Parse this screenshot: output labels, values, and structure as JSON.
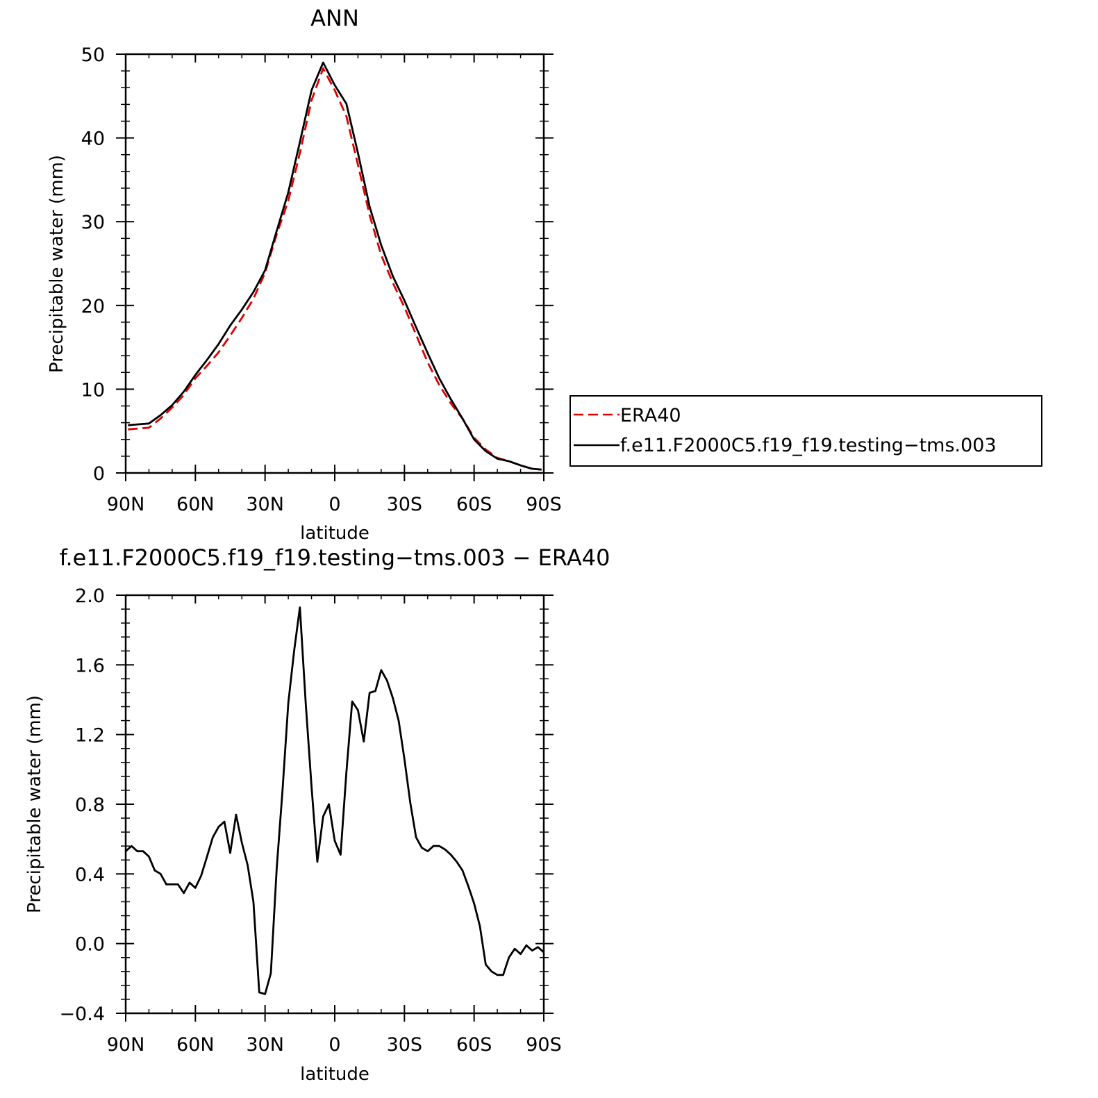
{
  "chart_data": [
    {
      "type": "line",
      "title": "ANN",
      "xlabel": "latitude",
      "ylabel": "Precipitable water (mm)",
      "xlim": [
        90,
        -90
      ],
      "ylim": [
        0,
        50
      ],
      "x_ticks": [
        {
          "value": 90,
          "label": "90N"
        },
        {
          "value": 60,
          "label": "60N"
        },
        {
          "value": 30,
          "label": "30N"
        },
        {
          "value": 0,
          "label": "0"
        },
        {
          "value": -30,
          "label": "30S"
        },
        {
          "value": -60,
          "label": "60S"
        },
        {
          "value": -90,
          "label": "90S"
        }
      ],
      "y_ticks": [
        {
          "value": 0,
          "label": "0"
        },
        {
          "value": 10,
          "label": "10"
        },
        {
          "value": 20,
          "label": "20"
        },
        {
          "value": 30,
          "label": "30"
        },
        {
          "value": 40,
          "label": "40"
        },
        {
          "value": 50,
          "label": "50"
        }
      ],
      "legend_position": "right",
      "series": [
        {
          "name": "ERA40",
          "color": "#e00000",
          "dash": "dashed",
          "x": [
            89,
            85,
            80,
            75,
            70,
            65,
            60,
            55,
            50,
            45,
            40,
            35,
            30,
            25,
            20,
            15,
            10,
            5,
            0,
            -5,
            -10,
            -15,
            -20,
            -25,
            -30,
            -35,
            -40,
            -45,
            -50,
            -55,
            -60,
            -65,
            -70,
            -75,
            -80,
            -85,
            -89
          ],
          "y": [
            5.2,
            5.3,
            5.4,
            6.5,
            7.8,
            9.3,
            11.3,
            12.8,
            14.4,
            16.4,
            18.5,
            20.8,
            23.9,
            28.5,
            32.5,
            38.2,
            44.5,
            48.3,
            45.7,
            42.6,
            36.8,
            30.8,
            26.0,
            22.7,
            19.8,
            16.5,
            13.2,
            10.5,
            8.3,
            6.5,
            4.2,
            2.8,
            1.8,
            1.4,
            0.9,
            0.5,
            0.4
          ]
        },
        {
          "name": "f.e11.F2000C5.f19_f19.testing−tms.003",
          "color": "#000000",
          "dash": "solid",
          "x": [
            89,
            85,
            80,
            75,
            70,
            65,
            60,
            55,
            50,
            45,
            40,
            35,
            30,
            25,
            20,
            15,
            10,
            5,
            0,
            -5,
            -10,
            -15,
            -20,
            -25,
            -30,
            -35,
            -40,
            -45,
            -50,
            -55,
            -60,
            -65,
            -70,
            -75,
            -80,
            -85,
            -89
          ],
          "y": [
            5.7,
            5.8,
            5.9,
            6.9,
            8.1,
            9.7,
            11.7,
            13.5,
            15.4,
            17.6,
            19.5,
            21.6,
            24.2,
            28.9,
            33.5,
            39.5,
            45.7,
            49.0,
            46.3,
            44.1,
            38.2,
            31.8,
            27.2,
            23.5,
            20.6,
            17.4,
            14.3,
            11.3,
            8.8,
            6.5,
            4.0,
            2.6,
            1.7,
            1.4,
            0.9,
            0.5,
            0.4
          ]
        }
      ]
    },
    {
      "type": "line",
      "title": "f.e11.F2000C5.f19_f19.testing−tms.003 − ERA40",
      "xlabel": "latitude",
      "ylabel": "Precipitable water (mm)",
      "xlim": [
        90,
        -90
      ],
      "ylim": [
        -0.4,
        2.0
      ],
      "x_ticks": [
        {
          "value": 90,
          "label": "90N"
        },
        {
          "value": 60,
          "label": "60N"
        },
        {
          "value": 30,
          "label": "30N"
        },
        {
          "value": 0,
          "label": "0"
        },
        {
          "value": -30,
          "label": "30S"
        },
        {
          "value": -60,
          "label": "60S"
        },
        {
          "value": -90,
          "label": "90S"
        }
      ],
      "y_ticks": [
        {
          "value": -0.4,
          "label": "−0.4"
        },
        {
          "value": 0.0,
          "label": "0.0"
        },
        {
          "value": 0.4,
          "label": "0.4"
        },
        {
          "value": 0.8,
          "label": "0.8"
        },
        {
          "value": 1.2,
          "label": "1.2"
        },
        {
          "value": 1.6,
          "label": "1.6"
        },
        {
          "value": 2.0,
          "label": "2.0"
        }
      ],
      "series": [
        {
          "color": "#000000",
          "dash": "solid",
          "x": [
            90,
            87.5,
            85,
            82.5,
            80,
            77.5,
            75,
            72.5,
            70,
            67.5,
            65,
            62.5,
            60,
            57.5,
            55,
            52.5,
            50,
            47.5,
            45,
            42.5,
            40,
            37.5,
            35,
            32.5,
            30,
            27.5,
            25,
            22.5,
            20,
            17.5,
            15,
            12.5,
            10,
            7.5,
            5,
            2.5,
            0,
            -2.5,
            -5,
            -7.5,
            -10,
            -12.5,
            -15,
            -17.5,
            -20,
            -22.5,
            -25,
            -27.5,
            -30,
            -32.5,
            -35,
            -37.5,
            -40,
            -42.5,
            -45,
            -47.5,
            -50,
            -52.5,
            -55,
            -57.5,
            -60,
            -62.5,
            -65,
            -67.5,
            -70,
            -72.5,
            -75,
            -77.5,
            -80,
            -82.5,
            -85,
            -87.5,
            -90
          ],
          "y": [
            0.53,
            0.56,
            0.53,
            0.53,
            0.5,
            0.42,
            0.4,
            0.34,
            0.34,
            0.34,
            0.29,
            0.35,
            0.32,
            0.39,
            0.5,
            0.61,
            0.67,
            0.7,
            0.52,
            0.74,
            0.58,
            0.45,
            0.24,
            -0.28,
            -0.29,
            -0.17,
            0.43,
            0.88,
            1.38,
            1.68,
            1.93,
            1.38,
            0.9,
            0.47,
            0.73,
            0.8,
            0.59,
            0.51,
            0.98,
            1.39,
            1.34,
            1.16,
            1.44,
            1.45,
            1.57,
            1.51,
            1.41,
            1.28,
            1.06,
            0.81,
            0.61,
            0.55,
            0.53,
            0.56,
            0.56,
            0.54,
            0.51,
            0.47,
            0.42,
            0.33,
            0.23,
            0.1,
            -0.12,
            -0.16,
            -0.18,
            -0.18,
            -0.08,
            -0.03,
            -0.06,
            -0.01,
            -0.04,
            -0.02,
            -0.05
          ]
        }
      ]
    }
  ]
}
